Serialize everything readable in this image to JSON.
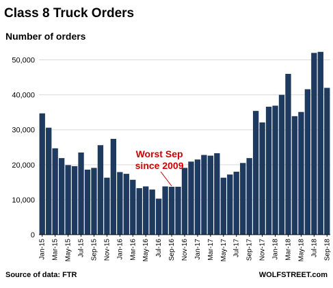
{
  "chart_data": {
    "type": "bar",
    "title": "Class 8 Truck Orders",
    "ylabel": "Number of orders",
    "ylim": [
      0,
      55000
    ],
    "yticks": [
      0,
      10000,
      20000,
      30000,
      40000,
      50000
    ],
    "ytick_labels": [
      "0",
      "10,000",
      "20,000",
      "30,000",
      "40,000",
      "50,000"
    ],
    "grid": "horizontal",
    "bar_color": "#1f3a5f",
    "categories": [
      "Jan-15",
      "Feb-15",
      "Mar-15",
      "Apr-15",
      "May-15",
      "Jun-15",
      "Jul-15",
      "Aug-15",
      "Sep-15",
      "Oct-15",
      "Nov-15",
      "Dec-15",
      "Jan-16",
      "Feb-16",
      "Mar-16",
      "Apr-16",
      "May-16",
      "Jun-16",
      "Jul-16",
      "Aug-16",
      "Sep-16",
      "Oct-16",
      "Nov-16",
      "Dec-16",
      "Jan-17",
      "Feb-17",
      "Mar-17",
      "Apr-17",
      "May-17",
      "Jun-17",
      "Jul-17",
      "Aug-17",
      "Sep-17",
      "Oct-17",
      "Nov-17",
      "Dec-17",
      "Jan-18",
      "Feb-18",
      "Mar-18",
      "Apr-18",
      "May-18",
      "Jun-18",
      "Jul-18",
      "Aug-18",
      "Sep-18"
    ],
    "visible_tick_labels": [
      "Jan-15",
      "Mar-15",
      "May-15",
      "Jul-15",
      "Sep-15",
      "Nov-15",
      "Jan-16",
      "Mar-16",
      "May-16",
      "Jul-16",
      "Sep-16",
      "Nov-16",
      "Jan-17",
      "Mar-17",
      "May-17",
      "Jul-17",
      "Sep-17",
      "Nov-17",
      "Jan-18",
      "Mar-18",
      "May-18",
      "Jul-18",
      "Sep-18"
    ],
    "values": [
      34700,
      30600,
      24700,
      21900,
      19900,
      19600,
      23500,
      18600,
      19100,
      25600,
      16300,
      27400,
      17900,
      17400,
      15700,
      13300,
      13800,
      12900,
      10300,
      13800,
      13700,
      13700,
      19100,
      20900,
      21500,
      22800,
      22600,
      23300,
      16300,
      17200,
      18000,
      20500,
      21900,
      35400,
      32100,
      36600,
      36900,
      40000,
      46000,
      33900,
      35100,
      41600,
      52000,
      52300,
      42000
    ],
    "annotation": {
      "text_lines": [
        "Worst Sep",
        "since 2009"
      ],
      "target_category": "Sep-16",
      "color": "#cc0000"
    },
    "source": "Source of data: FTR",
    "credit": "WOLFSTREET.com"
  }
}
